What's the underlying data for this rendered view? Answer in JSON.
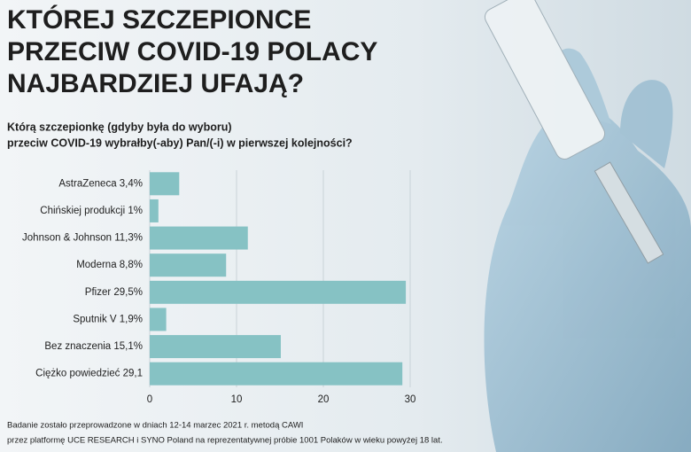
{
  "chart_data": {
    "type": "bar",
    "orientation": "horizontal",
    "title": [
      "KTÓREJ SZCZEPIONCE",
      "PRZECIW COVID-19 POLACY",
      "NAJBARDZIEJ UFAJĄ?"
    ],
    "subtitle": [
      "Którą szczepionkę (gdyby była do wyboru)",
      "przeciw COVID-19 wybrałby(-aby) Pan/(-i) w pierwszej kolejności?"
    ],
    "categories": [
      "AstraZeneca 3,4%",
      "Chińskiej produkcji 1%",
      "Johnson & Johnson 11,3%",
      "Moderna 8,8%",
      "Pfizer 29,5%",
      "Sputnik V 1,9%",
      "Bez znaczenia 15,1%",
      "Ciężko powiedzieć 29,1"
    ],
    "values": [
      3.4,
      1,
      11.3,
      8.8,
      29.5,
      1.9,
      15.1,
      29.1
    ],
    "color": "#86c2c4",
    "xlim": [
      0,
      30
    ],
    "xticks": [
      0,
      10,
      20,
      30
    ],
    "grid": true,
    "footnote": [
      "Badanie zostało przeprowadzone w dniach 12-14 marzec 2021 r. metodą CAWI",
      "przez platformę UCE RESEARCH i SYNO Poland na reprezentatywnej próbie 1001 Polaków w wieku powyżej 18 lat."
    ]
  }
}
